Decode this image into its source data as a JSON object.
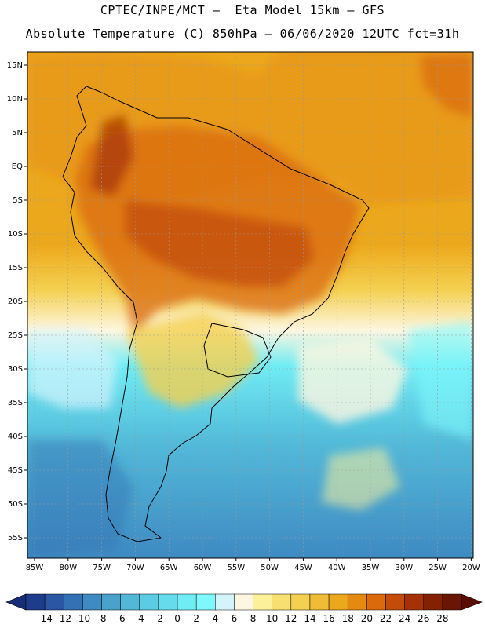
{
  "header": {
    "line1": "CPTEC/INPE/MCT –  Eta Model 15km – GFS",
    "line2": "Absolute Temperature (C) 850hPa – 06/06/2020 12UTC fct=31h"
  },
  "map": {
    "lon_labels": [
      "85W",
      "80W",
      "75W",
      "70W",
      "65W",
      "60W",
      "55W",
      "50W",
      "45W",
      "40W",
      "35W",
      "30W",
      "25W",
      "20W"
    ],
    "lat_labels": [
      "15N",
      "10N",
      "5N",
      "EQ",
      "5S",
      "10S",
      "15S",
      "20S",
      "25S",
      "30S",
      "35S",
      "40S",
      "45S",
      "50S",
      "55S"
    ]
  },
  "colorbar": {
    "labels": [
      "-14",
      "-12",
      "-10",
      "-8",
      "-6",
      "-4",
      "-2",
      "0",
      "2",
      "4",
      "6",
      "8",
      "10",
      "12",
      "14",
      "16",
      "18",
      "20",
      "22",
      "24",
      "26",
      "28"
    ],
    "colors": [
      "#1e3c8c",
      "#2a56a4",
      "#3470b4",
      "#3e8ac2",
      "#48a2cc",
      "#52b8d8",
      "#5ccce4",
      "#64dcec",
      "#70ecf4",
      "#7ef8fc",
      "#d4f4fc",
      "#fdf6e0",
      "#fcf09a",
      "#f8e070",
      "#f4d050",
      "#f0bc36",
      "#eca81c",
      "#e48a10",
      "#da6a0c",
      "#c24c08",
      "#a43206",
      "#842004",
      "#6a1604"
    ],
    "under_color": "#162e78",
    "over_color": "#5a0c02"
  }
}
